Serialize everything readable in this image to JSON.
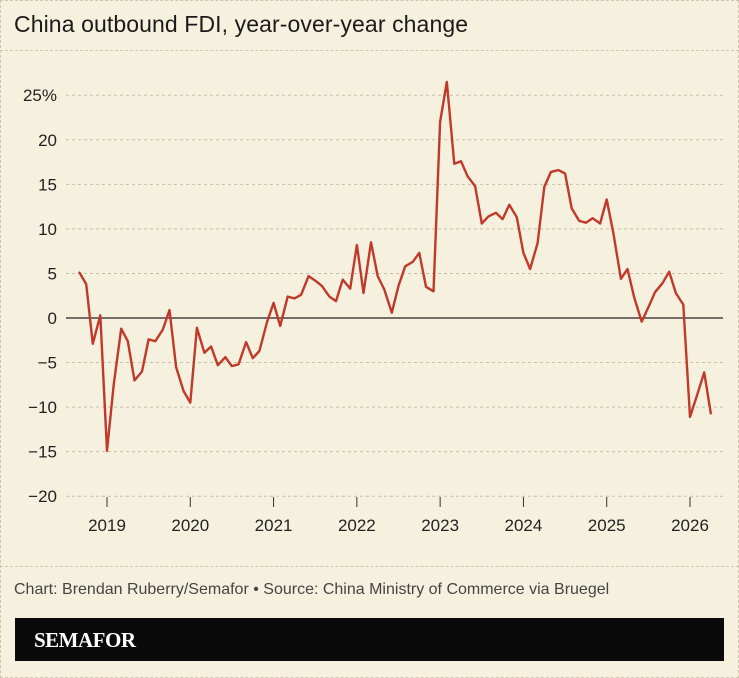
{
  "header": {
    "title": "China outbound FDI, year-over-year change"
  },
  "footer": {
    "credit": "Chart: Brendan Ruberry/Semafor • Source: China Ministry of Commerce via Bruegel",
    "brand": "SEMAFOR"
  },
  "colors": {
    "line": "#c0392b",
    "background": "#f6f1df",
    "grid": "#c9bfa3",
    "zero_line": "#222222"
  },
  "chart_data": {
    "type": "line",
    "title": "China outbound FDI, year-over-year change",
    "xlabel": "",
    "ylabel": "",
    "ylim": [
      -20,
      27
    ],
    "xlim": [
      2018.5,
      2026.4
    ],
    "y_ticks": [
      25,
      20,
      15,
      10,
      5,
      0,
      -5,
      -10,
      -15,
      -20
    ],
    "y_tick_labels": [
      "25%",
      "20",
      "15",
      "10",
      "5",
      "0",
      "−5",
      "−10",
      "−15",
      "−20"
    ],
    "x_ticks": [
      2019,
      2020,
      2021,
      2022,
      2023,
      2024,
      2025,
      2026
    ],
    "x_tick_labels": [
      "2019",
      "2020",
      "2021",
      "2022",
      "2023",
      "2024",
      "2025",
      "2026"
    ],
    "grid": "horizontal dashed",
    "series": [
      {
        "points": [
          [
            2018.67,
            5.1
          ],
          [
            2018.75,
            3.8
          ],
          [
            2018.83,
            -2.9
          ],
          [
            2018.92,
            0.3
          ],
          [
            2019.0,
            -14.9
          ],
          [
            2019.08,
            -7.5
          ],
          [
            2019.17,
            -1.2
          ],
          [
            2019.25,
            -2.6
          ],
          [
            2019.33,
            -7.0
          ],
          [
            2019.42,
            -6.0
          ],
          [
            2019.5,
            -2.4
          ],
          [
            2019.58,
            -2.6
          ],
          [
            2019.67,
            -1.3
          ],
          [
            2019.75,
            0.9
          ],
          [
            2019.83,
            -5.5
          ],
          [
            2019.92,
            -8.2
          ],
          [
            2020.0,
            -9.5
          ],
          [
            2020.08,
            -1.1
          ],
          [
            2020.17,
            -3.9
          ],
          [
            2020.25,
            -3.2
          ],
          [
            2020.33,
            -5.3
          ],
          [
            2020.42,
            -4.4
          ],
          [
            2020.5,
            -5.4
          ],
          [
            2020.58,
            -5.2
          ],
          [
            2020.67,
            -2.7
          ],
          [
            2020.75,
            -4.5
          ],
          [
            2020.83,
            -3.7
          ],
          [
            2020.92,
            -0.5
          ],
          [
            2021.0,
            1.7
          ],
          [
            2021.08,
            -0.9
          ],
          [
            2021.17,
            2.4
          ],
          [
            2021.25,
            2.2
          ],
          [
            2021.33,
            2.6
          ],
          [
            2021.42,
            4.7
          ],
          [
            2021.5,
            4.2
          ],
          [
            2021.58,
            3.6
          ],
          [
            2021.67,
            2.4
          ],
          [
            2021.75,
            1.9
          ],
          [
            2021.83,
            4.3
          ],
          [
            2021.92,
            3.3
          ],
          [
            2022.0,
            8.2
          ],
          [
            2022.08,
            2.8
          ],
          [
            2022.17,
            8.5
          ],
          [
            2022.25,
            4.7
          ],
          [
            2022.33,
            3.2
          ],
          [
            2022.42,
            0.6
          ],
          [
            2022.5,
            3.6
          ],
          [
            2022.58,
            5.8
          ],
          [
            2022.67,
            6.3
          ],
          [
            2022.75,
            7.3
          ],
          [
            2022.83,
            3.5
          ],
          [
            2022.92,
            3.0
          ],
          [
            2023.0,
            22.0
          ],
          [
            2023.08,
            26.5
          ],
          [
            2023.17,
            17.3
          ],
          [
            2023.25,
            17.6
          ],
          [
            2023.33,
            15.9
          ],
          [
            2023.42,
            14.8
          ],
          [
            2023.5,
            10.6
          ],
          [
            2023.58,
            11.4
          ],
          [
            2023.67,
            11.8
          ],
          [
            2023.75,
            11.1
          ],
          [
            2023.83,
            12.7
          ],
          [
            2023.92,
            11.3
          ],
          [
            2024.0,
            7.3
          ],
          [
            2024.08,
            5.5
          ],
          [
            2024.17,
            8.4
          ],
          [
            2024.25,
            14.7
          ],
          [
            2024.33,
            16.4
          ],
          [
            2024.42,
            16.6
          ],
          [
            2024.5,
            16.2
          ],
          [
            2024.58,
            12.3
          ],
          [
            2024.67,
            10.9
          ],
          [
            2024.75,
            10.7
          ],
          [
            2024.83,
            11.2
          ],
          [
            2024.92,
            10.6
          ],
          [
            2025.0,
            13.3
          ],
          [
            2025.08,
            9.5
          ],
          [
            2025.17,
            4.4
          ],
          [
            2025.25,
            5.5
          ],
          [
            2025.33,
            2.3
          ],
          [
            2025.42,
            -0.4
          ],
          [
            2025.5,
            1.2
          ],
          [
            2025.58,
            2.9
          ],
          [
            2025.67,
            3.9
          ],
          [
            2025.75,
            5.2
          ],
          [
            2025.83,
            2.8
          ],
          [
            2025.92,
            1.5
          ],
          [
            2026.0,
            -11.1
          ],
          [
            2026.08,
            -8.8
          ],
          [
            2026.17,
            -6.1
          ],
          [
            2026.25,
            -10.7
          ]
        ]
      }
    ]
  }
}
